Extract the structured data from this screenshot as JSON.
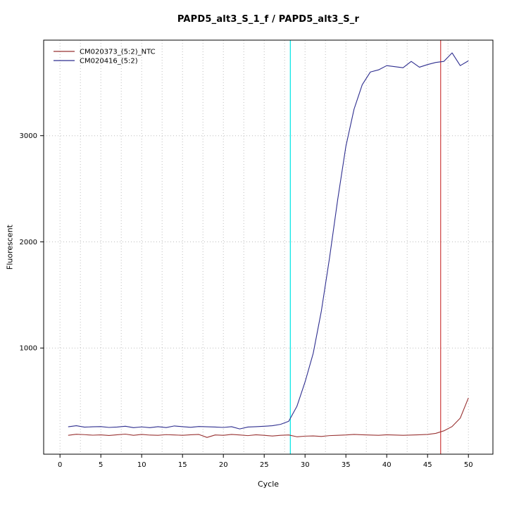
{
  "chart_data": {
    "type": "line",
    "title": "PAPD5_alt3_S_1_f / PAPD5_alt3_S_r",
    "xlabel": "Cycle",
    "ylabel": "Fluorescent",
    "xlim": [
      -2,
      53
    ],
    "ylim": [
      0,
      3900
    ],
    "x_ticks": [
      0,
      5,
      10,
      15,
      20,
      25,
      30,
      35,
      40,
      45,
      50
    ],
    "y_ticks": [
      1000,
      2000,
      3000
    ],
    "grid": {
      "x_start": 0,
      "x_end": 50,
      "x_step": 2.5,
      "y_lines": [
        1000,
        2000,
        3000
      ],
      "color": "#bdbdbd"
    },
    "vlines": [
      {
        "x": 28.2,
        "color": "#00e5e5",
        "name": "threshold-cycle-line-cyan"
      },
      {
        "x": 46.6,
        "color": "#cd3b3b",
        "name": "threshold-cycle-line-red"
      }
    ],
    "legend_position": "top-left",
    "x": [
      1,
      2,
      3,
      4,
      5,
      6,
      7,
      8,
      9,
      10,
      11,
      12,
      13,
      14,
      15,
      16,
      17,
      18,
      19,
      20,
      21,
      22,
      23,
      24,
      25,
      26,
      27,
      28,
      29,
      30,
      31,
      32,
      33,
      34,
      35,
      36,
      37,
      38,
      39,
      40,
      41,
      42,
      43,
      44,
      45,
      46,
      47,
      48,
      49,
      50
    ],
    "series": [
      {
        "name": "CM020373_(5:2)_NTC",
        "color": "#993333",
        "values": [
          178,
          188,
          184,
          179,
          182,
          176,
          183,
          189,
          178,
          186,
          180,
          178,
          184,
          181,
          178,
          183,
          186,
          158,
          181,
          178,
          186,
          181,
          175,
          183,
          178,
          171,
          178,
          181,
          164,
          170,
          172,
          167,
          175,
          178,
          181,
          186,
          183,
          180,
          178,
          183,
          180,
          178,
          180,
          183,
          186,
          196,
          220,
          260,
          340,
          530
        ]
      },
      {
        "name": "CM020416_(5:2)",
        "color": "#2e2e8f",
        "values": [
          258,
          268,
          255,
          258,
          260,
          252,
          256,
          263,
          250,
          257,
          250,
          259,
          251,
          266,
          259,
          253,
          261,
          258,
          256,
          252,
          259,
          238,
          256,
          259,
          263,
          268,
          281,
          310,
          450,
          680,
          950,
          1350,
          1850,
          2400,
          2900,
          3250,
          3480,
          3600,
          3620,
          3660,
          3650,
          3640,
          3700,
          3645,
          3670,
          3690,
          3700,
          3780,
          3660,
          3705
        ]
      }
    ]
  }
}
